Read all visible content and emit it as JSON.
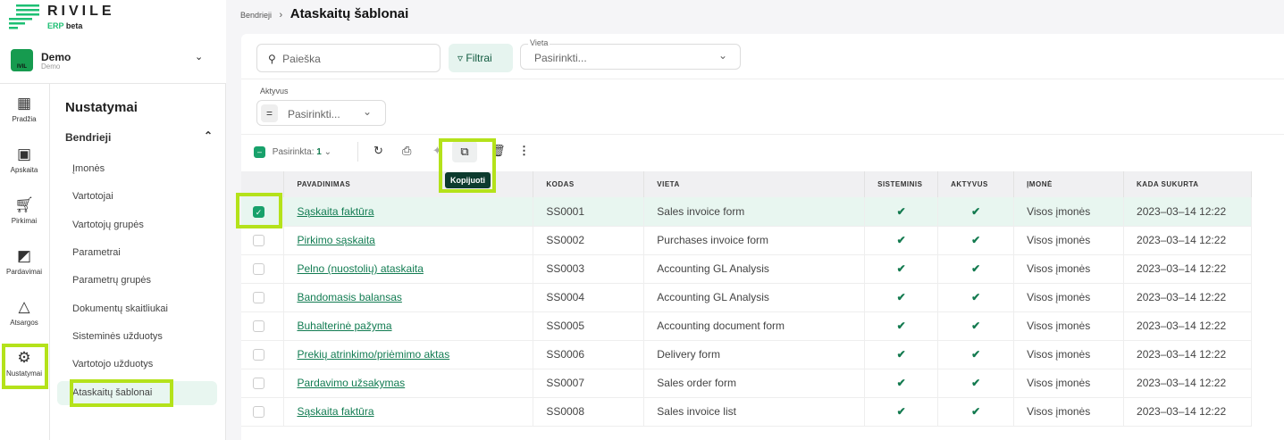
{
  "brand": {
    "name": "RIVILE",
    "sub_green": "ERP",
    "sub_dark": "beta"
  },
  "company": {
    "name": "Demo",
    "sub": "Demo",
    "logo_text": "IVIL"
  },
  "rail": [
    {
      "label": "Pradžia",
      "icon": "dashboard-icon"
    },
    {
      "label": "Apskaita",
      "icon": "chart-board-icon"
    },
    {
      "label": "Pirkimai",
      "icon": "cart-icon"
    },
    {
      "label": "Pardavimai",
      "icon": "sales-icon"
    },
    {
      "label": "Atsargos",
      "icon": "shapes-icon"
    },
    {
      "label": "Nustatymai",
      "icon": "gear-icon",
      "active": true
    }
  ],
  "submenu": {
    "title": "Nustatymai",
    "group": "Bendrieji",
    "items": [
      "Įmonės",
      "Vartotojai",
      "Vartotojų grupės",
      "Parametrai",
      "Parametrų grupės",
      "Dokumentų skaitliukai",
      "Sisteminės užduotys",
      "Vartotojo užduotys",
      "Ataskaitų šablonai"
    ],
    "active": "Ataskaitų šablonai"
  },
  "breadcrumb": {
    "parent": "Bendrieji",
    "current": "Ataskaitų šablonai"
  },
  "filters": {
    "search_placeholder": "Paieška",
    "filter_button": "Filtrai",
    "vieta_label": "Vieta",
    "vieta_value": "Pasirinkti...",
    "aktyvus_label": "Aktyvus",
    "aktyvus_op": "=",
    "aktyvus_value": "Pasirinkti..."
  },
  "toolbar": {
    "selected_label": "Pasirinkta:",
    "selected_count": "1",
    "tooltip": "Kopijuoti"
  },
  "table": {
    "columns": [
      "PAVADINIMAS",
      "KODAS",
      "VIETA",
      "SISTEMINIS",
      "AKTYVUS",
      "ĮMONĖ",
      "KADA SUKURTA"
    ],
    "rows": [
      [
        "Sąskaita faktūra",
        "SS0001",
        "Sales invoice form",
        true,
        true,
        "Visos įmonės",
        "2023–03–14 12:22",
        true
      ],
      [
        "Pirkimo sąskaita",
        "SS0002",
        "Purchases invoice form",
        true,
        true,
        "Visos įmonės",
        "2023–03–14 12:22",
        false
      ],
      [
        "Pelno (nuostolių) ataskaita",
        "SS0003",
        "Accounting GL Analysis",
        true,
        true,
        "Visos įmonės",
        "2023–03–14 12:22",
        false
      ],
      [
        "Bandomasis balansas",
        "SS0004",
        "Accounting GL Analysis",
        true,
        true,
        "Visos įmonės",
        "2023–03–14 12:22",
        false
      ],
      [
        "Buhalterinė pažyma",
        "SS0005",
        "Accounting document form",
        true,
        true,
        "Visos įmonės",
        "2023–03–14 12:22",
        false
      ],
      [
        "Prekių atrinkimo/priėmimo aktas",
        "SS0006",
        "Delivery form",
        true,
        true,
        "Visos įmonės",
        "2023–03–14 12:22",
        false
      ],
      [
        "Pardavimo užsakymas",
        "SS0007",
        "Sales order form",
        true,
        true,
        "Visos įmonės",
        "2023–03–14 12:22",
        false
      ],
      [
        "Sąskaita faktūra",
        "SS0008",
        "Sales invoice list",
        true,
        true,
        "Visos įmonės",
        "2023–03–14 12:22",
        false
      ]
    ]
  },
  "colors": {
    "accent": "#18a16b",
    "highlight": "#b4e21a",
    "tooltip_bg": "#0d3b2e"
  }
}
